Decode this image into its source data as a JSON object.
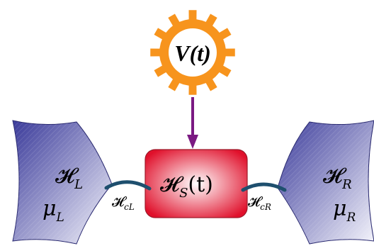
{
  "drive": {
    "label": "V(t)",
    "colors": {
      "gear": "#f7941d",
      "hub": "#ffffff"
    }
  },
  "arrow": {
    "color": "#7b1a82"
  },
  "system": {
    "symbol": "𝓗",
    "subscript": "S",
    "argument": "(t)",
    "colors": {
      "center": "#ffffff",
      "edge": "#e0102b",
      "stroke": "#9c1a2a"
    }
  },
  "left_lead": {
    "symbol": "𝓗",
    "subscript": "L",
    "mu": "μ",
    "mu_subscript": "L",
    "colors": {
      "dark": "#3a3a9a",
      "light": "#f4f4fb",
      "stroke": "#2a2a70"
    }
  },
  "right_lead": {
    "symbol": "𝓗",
    "subscript": "R",
    "mu": "μ",
    "mu_subscript": "R",
    "colors": {
      "dark": "#3a3a9a",
      "light": "#f4f4fb",
      "stroke": "#2a2a70"
    }
  },
  "left_coupling": {
    "symbol": "𝓗",
    "subscript": "cL",
    "color": "#1e4f6e"
  },
  "right_coupling": {
    "symbol": "𝓗",
    "subscript": "cR",
    "color": "#1e4f6e"
  }
}
